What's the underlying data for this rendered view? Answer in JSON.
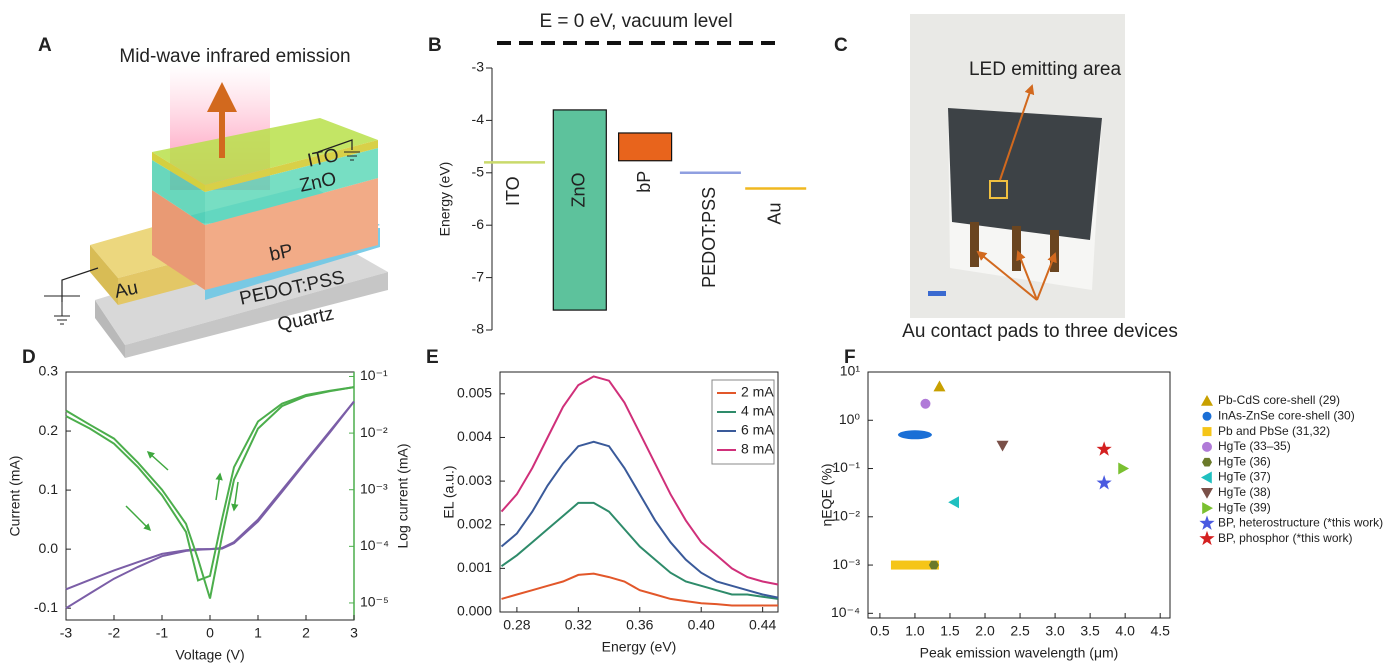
{
  "panel_labels": [
    "A",
    "B",
    "C",
    "D",
    "E",
    "F"
  ],
  "panel_a": {
    "title": "Mid-wave infrared emission",
    "layers": [
      "ITO",
      "ZnO",
      "bP",
      "Au",
      "PEDOT:PSS",
      "Quartz"
    ]
  },
  "panel_c": {
    "labels": [
      "LED emitting area",
      "Au contact pads to three devices"
    ]
  },
  "chart_data": [
    {
      "type": "band",
      "title": "E = 0 eV, vacuum level",
      "ylabel": "Energy (eV)",
      "ylim": [
        -8,
        -3
      ],
      "yticks": [
        -3,
        -4,
        -5,
        -6,
        -7,
        -8
      ],
      "items": [
        {
          "name": "ITO",
          "color": "#c9da6b",
          "level": -4.8
        },
        {
          "name": "ZnO",
          "color": "#5dc29c",
          "top": -3.8,
          "bottom": -7.62
        },
        {
          "name": "bP",
          "color": "#e8641c",
          "top": -4.24,
          "bottom": -4.77
        },
        {
          "name": "PEDOT:PSS",
          "color": "#8f9fe0",
          "level": -5.0
        },
        {
          "name": "Au",
          "color": "#f0b820",
          "level": -5.3
        }
      ]
    },
    {
      "type": "line",
      "xlabel": "Voltage (V)",
      "ylabel": "Current (mA)",
      "y2label": "Log current (mA)",
      "xlim": [
        -3,
        3
      ],
      "xticks": [
        -3,
        -2,
        -1,
        0,
        1,
        2,
        3
      ],
      "ylim": [
        -0.12,
        0.3
      ],
      "yticks": [
        -0.1,
        {
          "value": 0,
          "label": "0.0"
        },
        0.1,
        0.2,
        0.3
      ],
      "y2lim": [
        5e-06,
        0.12
      ],
      "y2log": true,
      "y2ticks": [
        {
          "value": 1e-05,
          "label": "10⁻⁵"
        },
        {
          "value": 0.0001,
          "label": "10⁻⁴"
        },
        {
          "value": 0.001,
          "label": "10⁻³"
        },
        {
          "value": 0.01,
          "label": "10⁻²"
        },
        {
          "value": 0.1,
          "label": "10⁻¹"
        }
      ],
      "x": [
        -3,
        -2.5,
        -2,
        -1.5,
        -1,
        -0.5,
        -0.25,
        0,
        0.25,
        0.5,
        1,
        1.5,
        2,
        2.5,
        3
      ],
      "series": [
        {
          "color": "#7b5ea7",
          "values": [
            -0.1,
            -0.075,
            -0.05,
            -0.03,
            -0.012,
            -0.003,
            -0.001,
            0,
            0.002,
            0.012,
            0.05,
            0.1,
            0.15,
            0.2,
            0.25
          ]
        },
        {
          "color": "#7b5ea7",
          "values": [
            -0.068,
            -0.052,
            -0.036,
            -0.022,
            -0.008,
            -0.002,
            0,
            0,
            0.001,
            0.01,
            0.047,
            0.097,
            0.148,
            0.198,
            0.25
          ]
        },
        {
          "color": "#4cae4c",
          "axis": "y2",
          "values": [
            0.025,
            0.014,
            0.008,
            0.003,
            0.001,
            0.00025,
            6e-05,
            1.2e-05,
            0.00015,
            0.0015,
            0.012,
            0.03,
            0.045,
            0.055,
            0.065
          ]
        },
        {
          "color": "#4cae4c",
          "axis": "y2",
          "values": [
            0.02,
            0.012,
            0.0065,
            0.0025,
            0.0008,
            0.00018,
            2.5e-05,
            3e-05,
            0.0003,
            0.0025,
            0.016,
            0.033,
            0.047,
            0.056,
            0.065
          ]
        }
      ]
    },
    {
      "type": "line",
      "xlabel": "Energy (eV)",
      "ylabel": "EL (a.u.)",
      "xlim": [
        0.269,
        0.45
      ],
      "xticks": [
        0.28,
        0.32,
        0.36,
        {
          "value": 0.4,
          "label": "0.40"
        },
        0.44
      ],
      "ylim": [
        0,
        0.0055
      ],
      "yticks": [
        {
          "value": 0,
          "label": "0.000"
        },
        0.001,
        0.002,
        0.003,
        0.004,
        0.005
      ],
      "legend": "upper right",
      "x": [
        0.27,
        0.28,
        0.29,
        0.3,
        0.31,
        0.32,
        0.33,
        0.34,
        0.35,
        0.36,
        0.37,
        0.38,
        0.39,
        0.4,
        0.41,
        0.42,
        0.43,
        0.44,
        0.45
      ],
      "series": [
        {
          "name": "2 mA",
          "color": "#e2572a",
          "values": [
            0.0003,
            0.0004,
            0.0005,
            0.0006,
            0.0007,
            0.00085,
            0.00088,
            0.0008,
            0.0007,
            0.0005,
            0.0004,
            0.0003,
            0.00025,
            0.0002,
            0.00018,
            0.00015,
            0.00015,
            0.00015,
            0.00015
          ]
        },
        {
          "name": "4 mA",
          "color": "#2e8b6a",
          "values": [
            0.00105,
            0.0013,
            0.0016,
            0.0019,
            0.0022,
            0.0025,
            0.0025,
            0.0023,
            0.0019,
            0.0015,
            0.0012,
            0.0009,
            0.0007,
            0.0006,
            0.0005,
            0.0004,
            0.0004,
            0.00035,
            0.0003
          ]
        },
        {
          "name": "6 mA",
          "color": "#3a5a9a",
          "values": [
            0.0015,
            0.0018,
            0.0023,
            0.0029,
            0.0034,
            0.0038,
            0.0039,
            0.0038,
            0.0033,
            0.0027,
            0.0021,
            0.0016,
            0.0012,
            0.0009,
            0.0007,
            0.0006,
            0.0005,
            0.0004,
            0.00033
          ]
        },
        {
          "name": "8 mA",
          "color": "#d0307a",
          "values": [
            0.0023,
            0.0027,
            0.0033,
            0.004,
            0.0047,
            0.0052,
            0.0054,
            0.0053,
            0.0048,
            0.0041,
            0.0034,
            0.0027,
            0.0021,
            0.0016,
            0.0013,
            0.001,
            0.0008,
            0.0007,
            0.00063
          ]
        }
      ]
    },
    {
      "type": "scatter",
      "xlabel": "Peak emission wavelength (μm)",
      "ylabel": "ηEQE (%)",
      "xlim": [
        0.33,
        4.64
      ],
      "xticks": [
        0.5,
        {
          "value": 1,
          "label": "1.0"
        },
        1.5,
        {
          "value": 2,
          "label": "2.0"
        },
        2.5,
        {
          "value": 3,
          "label": "3.0"
        },
        3.5,
        {
          "value": 4,
          "label": "4.0"
        },
        4.5
      ],
      "ylim": [
        8e-05,
        10
      ],
      "ylog": true,
      "yticks": [
        {
          "value": 10,
          "label": "10¹"
        },
        {
          "value": 1,
          "label": "10⁰"
        },
        {
          "value": 0.1,
          "label": "10⁻¹"
        },
        {
          "value": 0.01,
          "label": "10⁻²"
        },
        {
          "value": 0.001,
          "label": "10⁻³"
        },
        {
          "value": 0.0001,
          "label": "10⁻⁴"
        }
      ],
      "legend": "outside right",
      "series": [
        {
          "name": "Pb-CdS core-shell (29)",
          "color": "#c8a000",
          "marker": "triangle-up",
          "x": [
            1.35
          ],
          "values": [
            5
          ]
        },
        {
          "name": "InAs-ZnSe core-shell (30)",
          "color": "#1a6fd6",
          "marker": "ellipse",
          "x": [
            1.0
          ],
          "values": [
            0.5
          ]
        },
        {
          "name": "Pb and PbSe (31,32)",
          "color": "#f5c518",
          "marker": "bar",
          "x": [
            1.0
          ],
          "values": [
            0.001
          ]
        },
        {
          "name": "HgTe (33–35)",
          "color": "#b07ad8",
          "marker": "circle",
          "x": [
            1.15
          ],
          "values": [
            2.2
          ]
        },
        {
          "name": "HgTe (36)",
          "color": "#6b7a2a",
          "marker": "hexagon",
          "x": [
            1.27
          ],
          "values": [
            0.001
          ]
        },
        {
          "name": "HgTe (37)",
          "color": "#20c0c0",
          "marker": "triangle-left",
          "x": [
            1.56
          ],
          "values": [
            0.02
          ]
        },
        {
          "name": "HgTe (38)",
          "color": "#7a5048",
          "marker": "triangle-down",
          "x": [
            2.25
          ],
          "values": [
            0.3
          ]
        },
        {
          "name": "HgTe (39)",
          "color": "#7ac030",
          "marker": "triangle-right",
          "x": [
            3.97
          ],
          "values": [
            0.1
          ]
        },
        {
          "name": "BP, heterostructure (*this work)",
          "color": "#4a5ae0",
          "marker": "star",
          "x": [
            3.7
          ],
          "values": [
            0.05
          ]
        },
        {
          "name": "BP, phosphor (*this work)",
          "color": "#d42020",
          "marker": "star",
          "x": [
            3.7
          ],
          "values": [
            0.25
          ]
        }
      ]
    }
  ]
}
